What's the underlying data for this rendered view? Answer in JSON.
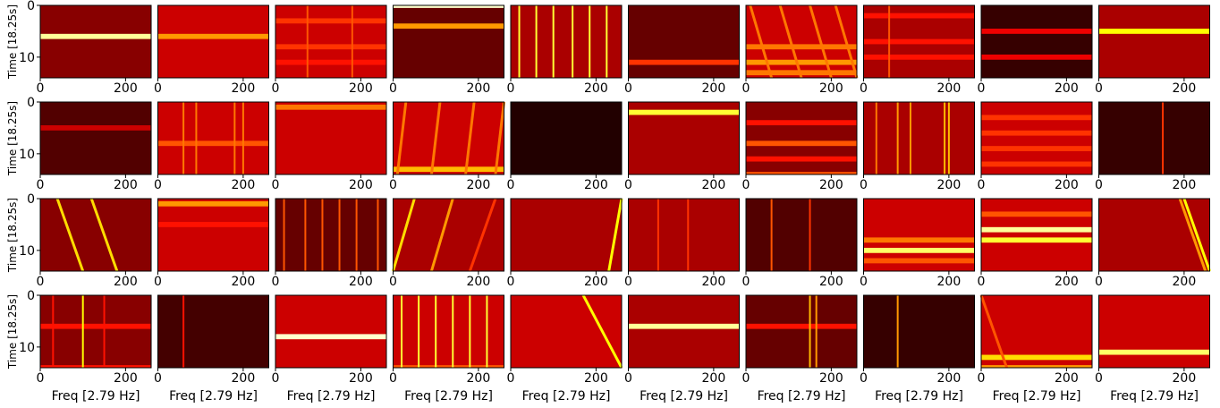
{
  "chart_data": [
    {
      "type": "heatmap",
      "xlim": [
        0,
        260
      ],
      "ylim": [
        14,
        0
      ],
      "xticks": [
        0,
        200
      ],
      "yticks": [
        0,
        10
      ],
      "ylabel": "Time [18.25s]",
      "background": 0.2,
      "hbands": [
        [
          6,
          0.9
        ]
      ]
    },
    {
      "type": "heatmap",
      "xlim": [
        0,
        260
      ],
      "ylim": [
        14,
        0
      ],
      "xticks": [
        0,
        200
      ],
      "background": 0.3,
      "hbands": [
        [
          6,
          0.6
        ]
      ]
    },
    {
      "type": "heatmap",
      "xlim": [
        0,
        260
      ],
      "ylim": [
        14,
        0
      ],
      "xticks": [
        0,
        200
      ],
      "background": 0.3,
      "hbands": [
        [
          3,
          0.45
        ],
        [
          8,
          0.45
        ],
        [
          11,
          0.4
        ]
      ],
      "vlines": [
        [
          75,
          0.5
        ],
        [
          180,
          0.5
        ]
      ]
    },
    {
      "type": "heatmap",
      "xlim": [
        0,
        260
      ],
      "ylim": [
        14,
        0
      ],
      "xticks": [
        0,
        200
      ],
      "background": 0.15,
      "hbands": [
        [
          0,
          0.95
        ],
        [
          4,
          0.6
        ]
      ]
    },
    {
      "type": "heatmap",
      "xlim": [
        0,
        260
      ],
      "ylim": [
        14,
        0
      ],
      "xticks": [
        0,
        200
      ],
      "background": 0.25,
      "vlines": [
        [
          20,
          0.8
        ],
        [
          60,
          0.8
        ],
        [
          100,
          0.8
        ],
        [
          145,
          0.8
        ],
        [
          185,
          0.8
        ],
        [
          225,
          0.8
        ]
      ]
    },
    {
      "type": "heatmap",
      "xlim": [
        0,
        260
      ],
      "ylim": [
        14,
        0
      ],
      "xticks": [
        0,
        200
      ],
      "background": 0.15,
      "hbands": [
        [
          11,
          0.45
        ]
      ]
    },
    {
      "type": "heatmap",
      "xlim": [
        0,
        260
      ],
      "ylim": [
        14,
        0
      ],
      "xticks": [
        0,
        200
      ],
      "background": 0.3,
      "hbands": [
        [
          8,
          0.55
        ],
        [
          11,
          0.6
        ],
        [
          13,
          0.55
        ]
      ],
      "diagonals": [
        [
          10,
          60,
          0.55
        ],
        [
          80,
          130,
          0.55
        ],
        [
          150,
          200,
          0.55
        ],
        [
          210,
          260,
          0.55
        ]
      ]
    },
    {
      "type": "heatmap",
      "xlim": [
        0,
        260
      ],
      "ylim": [
        14,
        0
      ],
      "xticks": [
        0,
        200
      ],
      "background": 0.25,
      "hbands": [
        [
          2,
          0.4
        ],
        [
          7,
          0.4
        ],
        [
          10,
          0.4
        ]
      ],
      "vlines": [
        [
          60,
          0.5
        ]
      ]
    },
    {
      "type": "heatmap",
      "xlim": [
        0,
        260
      ],
      "ylim": [
        14,
        0
      ],
      "xticks": [
        0,
        200
      ],
      "background": 0.08,
      "hbands": [
        [
          5,
          0.35
        ],
        [
          10,
          0.35
        ]
      ]
    },
    {
      "type": "heatmap",
      "xlim": [
        0,
        260
      ],
      "ylim": [
        14,
        0
      ],
      "xticks": [
        0,
        200
      ],
      "background": 0.25,
      "hbands": [
        [
          5,
          0.75
        ]
      ]
    },
    {
      "type": "heatmap",
      "xlim": [
        0,
        260
      ],
      "ylim": [
        14,
        0
      ],
      "xticks": [
        0,
        200
      ],
      "yticks": [
        0,
        10
      ],
      "ylabel": "Time [18.25s]",
      "background": 0.12,
      "hbands": [
        [
          5,
          0.3
        ]
      ]
    },
    {
      "type": "heatmap",
      "xlim": [
        0,
        260
      ],
      "ylim": [
        14,
        0
      ],
      "xticks": [
        0,
        200
      ],
      "background": 0.3,
      "hbands": [
        [
          8,
          0.5
        ]
      ],
      "vlines": [
        [
          60,
          0.55
        ],
        [
          90,
          0.55
        ],
        [
          180,
          0.55
        ],
        [
          200,
          0.55
        ]
      ]
    },
    {
      "type": "heatmap",
      "xlim": [
        0,
        260
      ],
      "ylim": [
        14,
        0
      ],
      "xticks": [
        0,
        200
      ],
      "background": 0.3,
      "hbands": [
        [
          1,
          0.55
        ]
      ]
    },
    {
      "type": "heatmap",
      "xlim": [
        0,
        260
      ],
      "ylim": [
        14,
        0
      ],
      "xticks": [
        0,
        200
      ],
      "background": 0.3,
      "hbands": [
        [
          13,
          0.65
        ]
      ],
      "diagonals": [
        [
          30,
          10,
          0.55
        ],
        [
          110,
          90,
          0.55
        ],
        [
          190,
          170,
          0.55
        ],
        [
          260,
          240,
          0.55
        ]
      ]
    },
    {
      "type": "heatmap",
      "xlim": [
        0,
        260
      ],
      "ylim": [
        14,
        0
      ],
      "xticks": [
        0,
        200
      ],
      "background": 0.05
    },
    {
      "type": "heatmap",
      "xlim": [
        0,
        260
      ],
      "ylim": [
        14,
        0
      ],
      "xticks": [
        0,
        200
      ],
      "background": 0.25,
      "hbands": [
        [
          2,
          0.8
        ]
      ]
    },
    {
      "type": "heatmap",
      "xlim": [
        0,
        260
      ],
      "ylim": [
        14,
        0
      ],
      "xticks": [
        0,
        200
      ],
      "background": 0.2,
      "hbands": [
        [
          4,
          0.4
        ],
        [
          8,
          0.5
        ],
        [
          11,
          0.4
        ],
        [
          14,
          0.5
        ]
      ]
    },
    {
      "type": "heatmap",
      "xlim": [
        0,
        260
      ],
      "ylim": [
        14,
        0
      ],
      "xticks": [
        0,
        200
      ],
      "background": 0.25,
      "vlines": [
        [
          30,
          0.55
        ],
        [
          80,
          0.6
        ],
        [
          110,
          0.6
        ],
        [
          190,
          0.65
        ],
        [
          200,
          0.65
        ]
      ]
    },
    {
      "type": "heatmap",
      "xlim": [
        0,
        260
      ],
      "ylim": [
        14,
        0
      ],
      "xticks": [
        0,
        200
      ],
      "background": 0.3,
      "hbands": [
        [
          3,
          0.45
        ],
        [
          6,
          0.45
        ],
        [
          9,
          0.45
        ],
        [
          12,
          0.45
        ]
      ]
    },
    {
      "type": "heatmap",
      "xlim": [
        0,
        260
      ],
      "ylim": [
        14,
        0
      ],
      "xticks": [
        0,
        200
      ],
      "background": 0.08,
      "vlines": [
        [
          150,
          0.45
        ]
      ]
    },
    {
      "type": "heatmap",
      "xlim": [
        0,
        260
      ],
      "ylim": [
        14,
        0
      ],
      "xticks": [
        0,
        200
      ],
      "yticks": [
        0,
        10
      ],
      "ylabel": "Time [18.25s]",
      "background": 0.2,
      "diagonals": [
        [
          40,
          100,
          0.7
        ],
        [
          120,
          180,
          0.7
        ]
      ]
    },
    {
      "type": "heatmap",
      "xlim": [
        0,
        260
      ],
      "ylim": [
        14,
        0
      ],
      "xticks": [
        0,
        200
      ],
      "background": 0.3,
      "hbands": [
        [
          1,
          0.6
        ],
        [
          5,
          0.4
        ]
      ]
    },
    {
      "type": "heatmap",
      "xlim": [
        0,
        260
      ],
      "ylim": [
        14,
        0
      ],
      "xticks": [
        0,
        200
      ],
      "background": 0.15,
      "vlines": [
        [
          20,
          0.5
        ],
        [
          70,
          0.5
        ],
        [
          110,
          0.5
        ],
        [
          150,
          0.5
        ],
        [
          190,
          0.5
        ],
        [
          240,
          0.5
        ]
      ]
    },
    {
      "type": "heatmap",
      "xlim": [
        0,
        260
      ],
      "ylim": [
        14,
        0
      ],
      "xticks": [
        0,
        200
      ],
      "background": 0.25,
      "diagonals": [
        [
          50,
          0,
          0.7
        ],
        [
          140,
          90,
          0.6
        ],
        [
          240,
          180,
          0.45
        ]
      ]
    },
    {
      "type": "heatmap",
      "xlim": [
        0,
        260
      ],
      "ylim": [
        14,
        0
      ],
      "xticks": [
        0,
        200
      ],
      "background": 0.25,
      "diagonals": [
        [
          260,
          230,
          0.75
        ]
      ]
    },
    {
      "type": "heatmap",
      "xlim": [
        0,
        260
      ],
      "ylim": [
        14,
        0
      ],
      "xticks": [
        0,
        200
      ],
      "background": 0.25,
      "vlines": [
        [
          70,
          0.45
        ],
        [
          140,
          0.45
        ]
      ]
    },
    {
      "type": "heatmap",
      "xlim": [
        0,
        260
      ],
      "ylim": [
        14,
        0
      ],
      "xticks": [
        0,
        200
      ],
      "background": 0.12,
      "vlines": [
        [
          60,
          0.5
        ],
        [
          150,
          0.45
        ]
      ]
    },
    {
      "type": "heatmap",
      "xlim": [
        0,
        260
      ],
      "ylim": [
        14,
        0
      ],
      "xticks": [
        0,
        200
      ],
      "background": 0.3,
      "hbands": [
        [
          8,
          0.55
        ],
        [
          10,
          0.85
        ],
        [
          12,
          0.5
        ]
      ]
    },
    {
      "type": "heatmap",
      "xlim": [
        0,
        260
      ],
      "ylim": [
        14,
        0
      ],
      "xticks": [
        0,
        200
      ],
      "background": 0.3,
      "hbands": [
        [
          3,
          0.5
        ],
        [
          6,
          0.9
        ],
        [
          8,
          0.8
        ]
      ]
    },
    {
      "type": "heatmap",
      "xlim": [
        0,
        260
      ],
      "ylim": [
        14,
        0
      ],
      "xticks": [
        0,
        200
      ],
      "background": 0.25,
      "diagonals": [
        [
          200,
          260,
          0.75
        ],
        [
          190,
          250,
          0.6
        ]
      ]
    },
    {
      "type": "heatmap",
      "xlim": [
        0,
        260
      ],
      "ylim": [
        14,
        0
      ],
      "xticks": [
        0,
        200
      ],
      "yticks": [
        0,
        10
      ],
      "ylabel": "Time [18.25s]",
      "xlabel": "Freq [2.79 Hz]",
      "background": 0.2,
      "hbands": [
        [
          6,
          0.4
        ],
        [
          14,
          0.4
        ]
      ],
      "vlines": [
        [
          30,
          0.4
        ],
        [
          100,
          0.75
        ],
        [
          150,
          0.4
        ]
      ]
    },
    {
      "type": "heatmap",
      "xlim": [
        0,
        260
      ],
      "ylim": [
        14,
        0
      ],
      "xticks": [
        0,
        200
      ],
      "xlabel": "Freq [2.79 Hz]",
      "background": 0.1,
      "vlines": [
        [
          60,
          0.4
        ]
      ]
    },
    {
      "type": "heatmap",
      "xlim": [
        0,
        260
      ],
      "ylim": [
        14,
        0
      ],
      "xticks": [
        0,
        200
      ],
      "xlabel": "Freq [2.79 Hz]",
      "background": 0.3,
      "hbands": [
        [
          8,
          0.95
        ]
      ]
    },
    {
      "type": "heatmap",
      "xlim": [
        0,
        260
      ],
      "ylim": [
        14,
        0
      ],
      "xticks": [
        0,
        200
      ],
      "xlabel": "Freq [2.79 Hz]",
      "background": 0.3,
      "hbands": [
        [
          14,
          0.5
        ]
      ],
      "vlines": [
        [
          20,
          0.8
        ],
        [
          60,
          0.8
        ],
        [
          100,
          0.8
        ],
        [
          140,
          0.8
        ],
        [
          180,
          0.8
        ],
        [
          220,
          0.8
        ]
      ]
    },
    {
      "type": "heatmap",
      "xlim": [
        0,
        260
      ],
      "ylim": [
        14,
        0
      ],
      "xticks": [
        0,
        200
      ],
      "xlabel": "Freq [2.79 Hz]",
      "background": 0.3,
      "diagonals": [
        [
          170,
          260,
          0.75
        ]
      ]
    },
    {
      "type": "heatmap",
      "xlim": [
        0,
        260
      ],
      "ylim": [
        14,
        0
      ],
      "xticks": [
        0,
        200
      ],
      "xlabel": "Freq [2.79 Hz]",
      "background": 0.25,
      "hbands": [
        [
          6,
          0.9
        ]
      ]
    },
    {
      "type": "heatmap",
      "xlim": [
        0,
        260
      ],
      "ylim": [
        14,
        0
      ],
      "xticks": [
        0,
        200
      ],
      "xlabel": "Freq [2.79 Hz]",
      "background": 0.15,
      "hbands": [
        [
          6,
          0.4
        ]
      ],
      "vlines": [
        [
          150,
          0.65
        ],
        [
          165,
          0.6
        ]
      ]
    },
    {
      "type": "heatmap",
      "xlim": [
        0,
        260
      ],
      "ylim": [
        14,
        0
      ],
      "xticks": [
        0,
        200
      ],
      "xlabel": "Freq [2.79 Hz]",
      "background": 0.08,
      "vlines": [
        [
          80,
          0.6
        ]
      ]
    },
    {
      "type": "heatmap",
      "xlim": [
        0,
        260
      ],
      "ylim": [
        14,
        0
      ],
      "xticks": [
        0,
        200
      ],
      "xlabel": "Freq [2.79 Hz]",
      "background": 0.3,
      "hbands": [
        [
          12,
          0.7
        ],
        [
          14,
          0.6
        ]
      ],
      "diagonals": [
        [
          0,
          60,
          0.5
        ]
      ]
    },
    {
      "type": "heatmap",
      "xlim": [
        0,
        260
      ],
      "ylim": [
        14,
        0
      ],
      "xticks": [
        0,
        200
      ],
      "xlabel": "Freq [2.79 Hz]",
      "background": 0.3,
      "hbands": [
        [
          11,
          0.85
        ]
      ]
    }
  ]
}
